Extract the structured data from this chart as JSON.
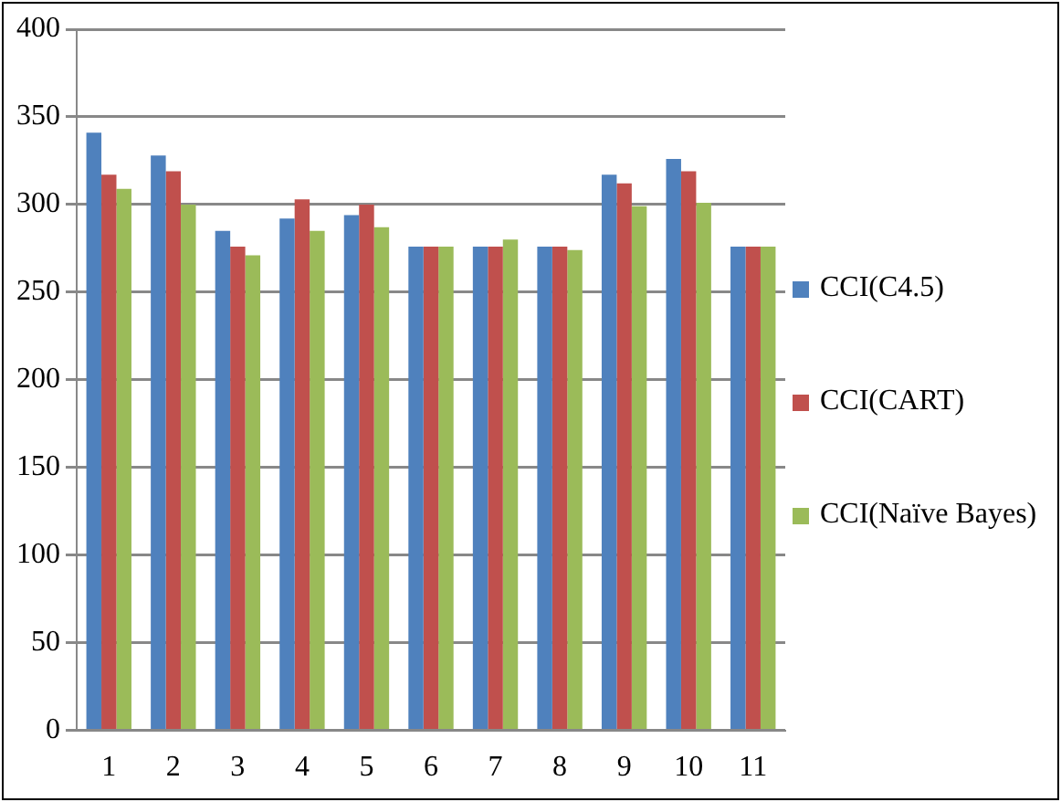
{
  "chart_data": {
    "type": "bar",
    "categories": [
      "1",
      "2",
      "3",
      "4",
      "5",
      "6",
      "7",
      "8",
      "9",
      "10",
      "11"
    ],
    "series": [
      {
        "name": "CCI(C4.5)",
        "color": "#4f81bd",
        "values": [
          341,
          328,
          285,
          292,
          294,
          276,
          276,
          276,
          317,
          326,
          276
        ]
      },
      {
        "name": "CCI(CART)",
        "color": "#c0504d",
        "values": [
          317,
          319,
          276,
          303,
          300,
          276,
          276,
          276,
          312,
          319,
          276
        ]
      },
      {
        "name": "CCI(Naïve Bayes)",
        "color": "#9bbb59",
        "values": [
          309,
          300,
          271,
          285,
          287,
          276,
          280,
          274,
          299,
          301,
          276
        ]
      }
    ],
    "ylim": [
      0,
      400
    ],
    "yticks": [
      0,
      50,
      100,
      150,
      200,
      250,
      300,
      350,
      400
    ],
    "grid": "y",
    "legend": "right"
  }
}
